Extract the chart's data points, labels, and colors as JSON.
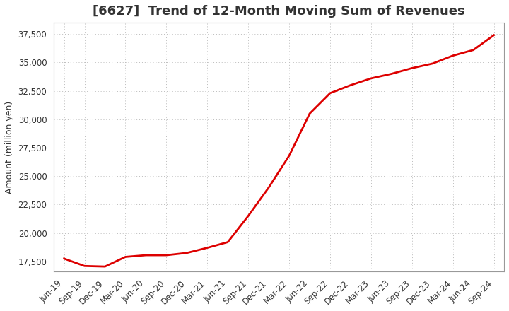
{
  "title": "[6627]  Trend of 12-Month Moving Sum of Revenues",
  "ylabel": "Amount (million yen)",
  "line_color": "#dd0000",
  "line_width": 2.0,
  "background_color": "#ffffff",
  "plot_background_color": "#ffffff",
  "grid_color": "#bbbbbb",
  "x_labels": [
    "Jun-19",
    "Sep-19",
    "Dec-19",
    "Mar-20",
    "Jun-20",
    "Sep-20",
    "Dec-20",
    "Mar-21",
    "Jun-21",
    "Sep-21",
    "Dec-21",
    "Mar-22",
    "Jun-22",
    "Sep-22",
    "Dec-22",
    "Mar-23",
    "Jun-23",
    "Sep-23",
    "Dec-23",
    "Mar-24",
    "Jun-24",
    "Sep-24"
  ],
  "y_values": [
    17750,
    17100,
    17050,
    17900,
    18050,
    18050,
    18250,
    18700,
    19200,
    21500,
    24000,
    26800,
    30500,
    32300,
    33000,
    33600,
    34000,
    34500,
    34900,
    35600,
    36100,
    37400
  ],
  "yticks": [
    17500,
    20000,
    22500,
    25000,
    27500,
    30000,
    32500,
    35000,
    37500
  ],
  "ylim": [
    16600,
    38500
  ],
  "title_fontsize": 13,
  "ylabel_fontsize": 9,
  "tick_fontsize": 8.5
}
